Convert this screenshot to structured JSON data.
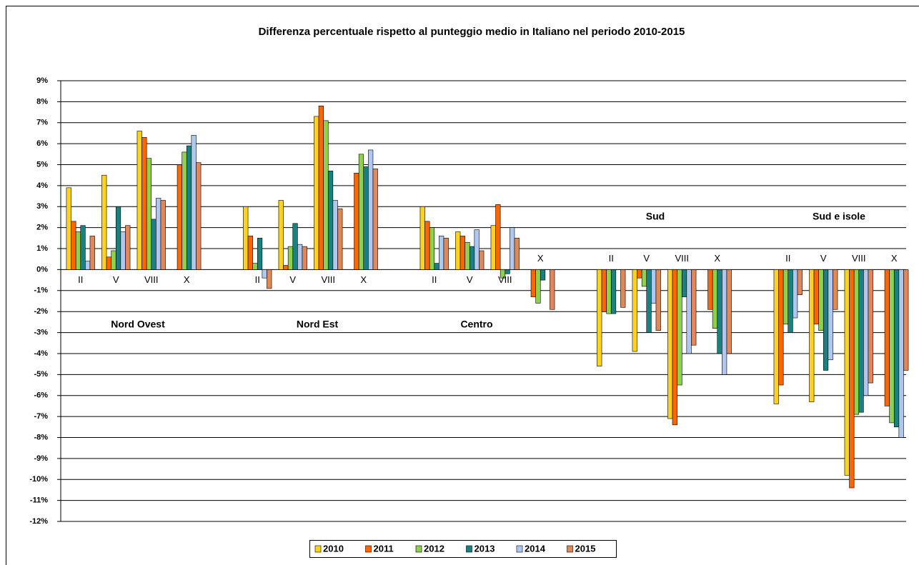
{
  "chart_data": {
    "type": "bar",
    "title": "Differenza percentuale rispetto al punteggio medio in Italiano nel periodo 2010-2015",
    "categories": [
      "II",
      "V",
      "VIII",
      "X",
      null,
      "II",
      "V",
      "VIII",
      "X",
      null,
      "II",
      "V",
      "VIII",
      "X",
      null,
      "II",
      "V",
      "VIII",
      "X",
      null,
      "II",
      "V",
      "VIII",
      "X"
    ],
    "annotations": [
      "Nord Ovest",
      "Nord Est",
      "Centro",
      "Sud",
      "Sud e isole"
    ],
    "series": [
      {
        "name": "2010",
        "color": "#ffd21f",
        "values": [
          3.9,
          4.5,
          6.6,
          null,
          null,
          3.0,
          3.3,
          7.3,
          null,
          null,
          3.0,
          1.8,
          2.1,
          null,
          null,
          -4.6,
          -3.9,
          -7.1,
          null,
          null,
          -6.4,
          -6.3,
          -9.8,
          null
        ]
      },
      {
        "name": "2011",
        "color": "#ff6600",
        "values": [
          2.3,
          0.6,
          6.3,
          5.0,
          null,
          1.6,
          0.2,
          7.8,
          4.6,
          null,
          2.3,
          1.6,
          3.1,
          -1.3,
          null,
          -2.0,
          -0.4,
          -7.4,
          -1.9,
          null,
          -5.5,
          -2.6,
          -10.4,
          -6.5
        ]
      },
      {
        "name": "2012",
        "color": "#8fd14f",
        "values": [
          1.8,
          0.9,
          5.3,
          5.6,
          null,
          0.3,
          1.1,
          7.1,
          5.5,
          null,
          2.0,
          1.3,
          -0.4,
          -1.6,
          null,
          -2.1,
          -0.8,
          -5.5,
          -2.8,
          null,
          -2.6,
          -2.9,
          -6.9,
          -7.3
        ]
      },
      {
        "name": "2013",
        "color": "#1a8080",
        "values": [
          2.1,
          3.0,
          2.4,
          5.9,
          null,
          1.5,
          2.2,
          4.7,
          4.9,
          null,
          0.3,
          1.1,
          -0.2,
          -0.5,
          null,
          -2.1,
          -3.0,
          -1.3,
          -4.0,
          null,
          -3.0,
          -4.8,
          -6.8,
          -7.5
        ]
      },
      {
        "name": "2014",
        "color": "#b0c8f0",
        "values": [
          0.4,
          1.8,
          3.4,
          6.4,
          null,
          -0.4,
          1.2,
          3.3,
          5.7,
          null,
          1.6,
          1.9,
          2.0,
          0,
          null,
          0,
          -1.6,
          -4.0,
          -5.0,
          null,
          -2.3,
          -4.3,
          -6.0,
          -8.0
        ]
      },
      {
        "name": "2015",
        "color": "#e0885a",
        "values": [
          1.6,
          2.1,
          3.3,
          5.1,
          null,
          -0.9,
          1.1,
          2.9,
          4.8,
          null,
          1.5,
          0.9,
          1.5,
          -1.9,
          null,
          -1.8,
          -2.9,
          -3.6,
          -4.0,
          null,
          -1.2,
          -1.9,
          -5.4,
          -4.8
        ]
      }
    ],
    "ylim": [
      -12,
      9
    ],
    "yticks": [
      {
        "value": -12,
        "label": "-12%"
      },
      {
        "value": -11,
        "label": "-11%"
      },
      {
        "value": -10,
        "label": "-10%"
      },
      {
        "value": -9,
        "label": "-9%"
      },
      {
        "value": -8,
        "label": "-8%"
      },
      {
        "value": -7,
        "label": "-7%"
      },
      {
        "value": -6,
        "label": "-6%"
      },
      {
        "value": -5,
        "label": "-5%"
      },
      {
        "value": -4,
        "label": "-4%"
      },
      {
        "value": -3,
        "label": "-3%"
      },
      {
        "value": -2,
        "label": "-2%"
      },
      {
        "value": -1,
        "label": "-1%"
      },
      {
        "value": 0,
        "label": "0%"
      },
      {
        "value": 1,
        "label": "1%"
      },
      {
        "value": 2,
        "label": "2%"
      },
      {
        "value": 3,
        "label": "3%"
      },
      {
        "value": 4,
        "label": "4%"
      },
      {
        "value": 5,
        "label": "5%"
      },
      {
        "value": 6,
        "label": "6%"
      },
      {
        "value": 7,
        "label": "7%"
      },
      {
        "value": 8,
        "label": "8%"
      },
      {
        "value": 9,
        "label": "9%"
      }
    ],
    "grid": true,
    "legend": "bottom"
  }
}
